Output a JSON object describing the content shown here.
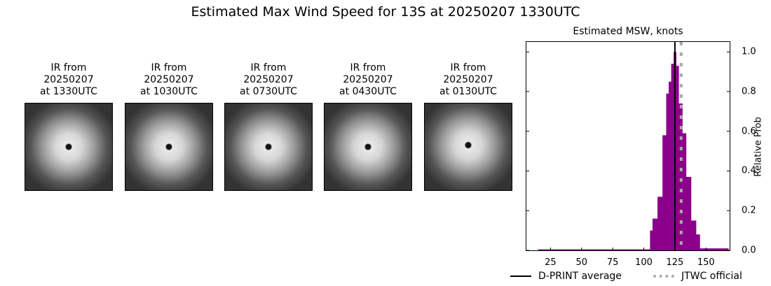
{
  "title": "Estimated Max Wind Speed for 13S at 20250207 1330UTC",
  "ir_panels": [
    {
      "line1": "IR from",
      "line2": "20250207",
      "line3": "at 1330UTC"
    },
    {
      "line1": "IR from",
      "line2": "20250207",
      "line3": "at 1030UTC"
    },
    {
      "line1": "IR from",
      "line2": "20250207",
      "line3": "at 0730UTC"
    },
    {
      "line1": "IR from",
      "line2": "20250207",
      "line3": "at 0430UTC"
    },
    {
      "line1": "IR from",
      "line2": "20250207",
      "line3": "at 0130UTC"
    }
  ],
  "legend": {
    "dprint": "D-PRINT average",
    "jtwc": "JTWC official"
  },
  "colors": {
    "bars": "#8b008b",
    "dprint_line": "#000000",
    "jtwc_line": "#aaaaaa"
  },
  "chart_data": {
    "type": "bar",
    "title": "Estimated MSW, knots",
    "xlabel": "",
    "ylabel": "Relative Prob",
    "xlim": [
      5.6,
      169
    ],
    "ylim": [
      0,
      1.05
    ],
    "xticks": [
      25,
      50,
      75,
      100,
      125,
      150
    ],
    "yticks": [
      0.0,
      0.2,
      0.4,
      0.6,
      0.8,
      1.0
    ],
    "ytick_labels": [
      "0.0",
      "0.2",
      "0.4",
      "0.6",
      "0.8",
      "1.0"
    ],
    "y_axis_side": "right",
    "grid": false,
    "bins": [
      {
        "x0": 15,
        "x1": 105,
        "value": 0.005
      },
      {
        "x0": 105,
        "x1": 107,
        "value": 0.1
      },
      {
        "x0": 107,
        "x1": 111,
        "value": 0.16
      },
      {
        "x0": 111,
        "x1": 115,
        "value": 0.27
      },
      {
        "x0": 115,
        "x1": 118,
        "value": 0.58
      },
      {
        "x0": 118,
        "x1": 120,
        "value": 0.79
      },
      {
        "x0": 120,
        "x1": 122,
        "value": 0.85
      },
      {
        "x0": 122,
        "x1": 124,
        "value": 0.94
      },
      {
        "x0": 124,
        "x1": 126,
        "value": 1.0
      },
      {
        "x0": 126,
        "x1": 128,
        "value": 0.93
      },
      {
        "x0": 128,
        "x1": 131,
        "value": 0.74
      },
      {
        "x0": 131,
        "x1": 134,
        "value": 0.59
      },
      {
        "x0": 134,
        "x1": 138,
        "value": 0.37
      },
      {
        "x0": 138,
        "x1": 142,
        "value": 0.15
      },
      {
        "x0": 142,
        "x1": 145,
        "value": 0.08
      },
      {
        "x0": 145,
        "x1": 168,
        "value": 0.01
      }
    ],
    "vlines": [
      {
        "name": "D-PRINT average",
        "x": 125,
        "style": "solid",
        "color": "#000000"
      },
      {
        "name": "JTWC official",
        "x": 130,
        "style": "dotted",
        "color": "#aaaaaa"
      }
    ],
    "legend_position": "below"
  }
}
